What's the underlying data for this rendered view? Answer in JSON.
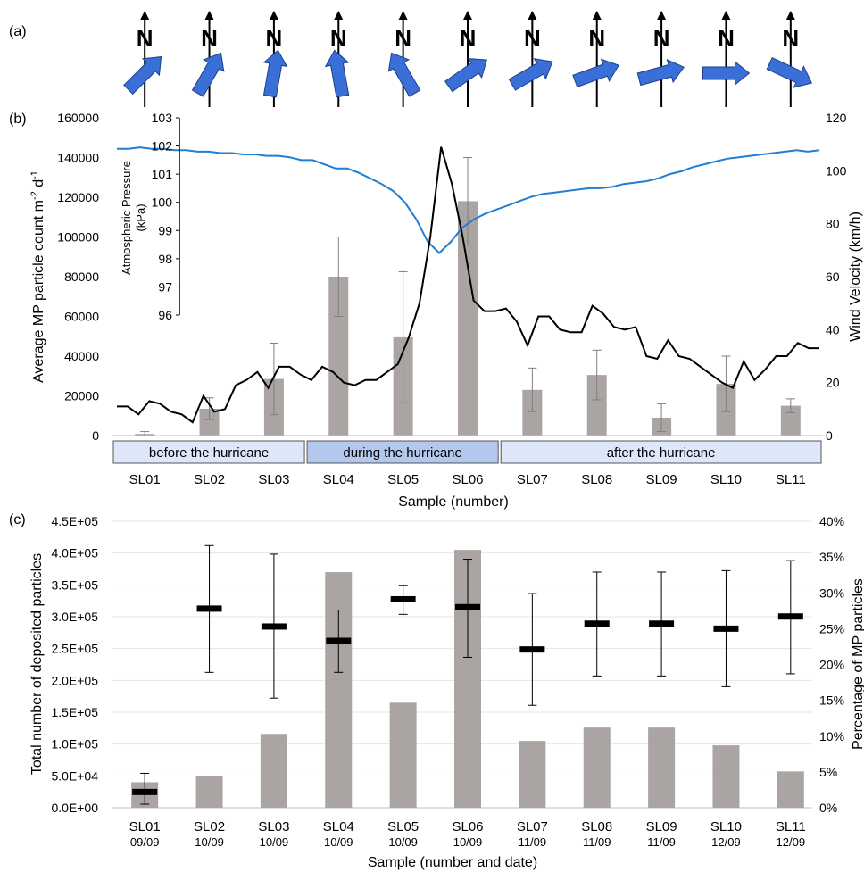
{
  "panel_labels": {
    "a": "(a)",
    "b": "(b)",
    "c": "(c)"
  },
  "colors": {
    "bar": "#aaa5a3",
    "pressure": "#1f7fd4",
    "wind": "#000000",
    "arrow": "#3a6fd8",
    "mean_mark": "#000000",
    "before_box": "#dde7f9",
    "during_box": "#b4c8ee",
    "after_box": "#dde7f9"
  },
  "compass": {
    "north_letter": "N",
    "wind_directions_deg": [
      225,
      210,
      190,
      170,
      150,
      235,
      240,
      250,
      255,
      270,
      295
    ]
  },
  "chart_data": [
    {
      "type": "bar",
      "panel": "(b)",
      "categories": [
        "SL01",
        "SL02",
        "SL03",
        "SL04",
        "SL05",
        "SL06",
        "SL07",
        "SL08",
        "SL09",
        "SL10",
        "SL11"
      ],
      "series": [
        {
          "values": [
            800,
            13500,
            28500,
            80000,
            49500,
            118000,
            23000,
            30500,
            9000,
            26000,
            15000
          ],
          "error": [
            1200,
            5500,
            18000,
            20000,
            33000,
            22000,
            11000,
            12500,
            7000,
            14000,
            3500
          ]
        }
      ],
      "xlabel": "Sample (number)",
      "ylabel": "Average MP particle count m",
      "ylabel_sup1": "-2",
      "ylabel_mid": " d",
      "ylabel_sup2": "-1",
      "ylim": [
        0,
        160000
      ],
      "yticks": [
        "0",
        "20000",
        "40000",
        "60000",
        "80000",
        "100000",
        "120000",
        "140000",
        "160000"
      ],
      "y2label": "Wind Velocity (km/h)",
      "y2lim": [
        0,
        120
      ],
      "y2ticks": [
        "0",
        "20",
        "40",
        "60",
        "80",
        "100",
        "120"
      ],
      "inset_axis": {
        "label_line1": "Atmospheric Pressure",
        "label_line2": "(kPa)",
        "ylim": [
          96,
          103
        ],
        "yticks": [
          "96",
          "97",
          "98",
          "99",
          "100",
          "101",
          "102",
          "103"
        ]
      },
      "pressure_kpa": [
        101.9,
        101.9,
        101.95,
        101.9,
        101.9,
        101.85,
        101.85,
        101.8,
        101.8,
        101.75,
        101.75,
        101.7,
        101.7,
        101.65,
        101.65,
        101.6,
        101.5,
        101.5,
        101.35,
        101.2,
        101.2,
        101.05,
        100.85,
        100.65,
        100.4,
        100.0,
        99.4,
        98.6,
        98.2,
        98.6,
        99.1,
        99.4,
        99.6,
        99.75,
        99.9,
        100.05,
        100.2,
        100.3,
        100.35,
        100.4,
        100.45,
        100.5,
        100.5,
        100.55,
        100.65,
        100.7,
        100.75,
        100.85,
        101.0,
        101.1,
        101.25,
        101.35,
        101.45,
        101.55,
        101.6,
        101.65,
        101.7,
        101.75,
        101.8,
        101.85,
        101.8,
        101.85
      ],
      "wind_kmh": [
        11,
        11,
        8,
        13,
        12,
        9,
        8,
        5,
        15,
        9,
        10,
        19,
        21,
        24,
        18,
        26,
        26,
        23,
        21,
        26,
        24,
        20,
        19,
        21,
        21,
        24,
        27,
        37,
        50,
        75,
        109,
        95,
        75,
        51,
        47,
        47,
        48,
        43,
        34,
        45,
        45,
        40,
        39,
        39,
        49,
        46,
        41,
        40,
        41,
        30,
        29,
        36,
        30,
        29,
        26,
        23,
        20,
        18,
        28,
        21,
        25,
        30,
        30,
        35,
        33,
        33
      ],
      "groups": [
        {
          "label": "before the hurricane",
          "from": 0,
          "to": 2
        },
        {
          "label": "during the hurricane",
          "from": 3,
          "to": 5
        },
        {
          "label": "after the hurricane",
          "from": 6,
          "to": 10
        }
      ]
    },
    {
      "type": "bar",
      "panel": "(c)",
      "categories": [
        "SL01",
        "SL02",
        "SL03",
        "SL04",
        "SL05",
        "SL06",
        "SL07",
        "SL08",
        "SL09",
        "SL10",
        "SL11"
      ],
      "dates": [
        "09/09",
        "10/09",
        "10/09",
        "10/09",
        "10/09",
        "10/09",
        "11/09",
        "11/09",
        "11/09",
        "12/09",
        "12/09"
      ],
      "total_deposited": [
        40000,
        50000,
        116000,
        370000,
        165000,
        405000,
        105000,
        126000,
        126000,
        98000,
        57000
      ],
      "mp_percentage": [
        2.2,
        27.8,
        25.3,
        23.3,
        29.1,
        28.0,
        22.1,
        25.7,
        25.7,
        25.0,
        26.7
      ],
      "mp_percentage_low": [
        0.5,
        18.9,
        15.3,
        18.9,
        27.0,
        21.0,
        14.3,
        18.4,
        18.4,
        16.9,
        18.7
      ],
      "mp_percentage_high": [
        4.8,
        36.6,
        35.4,
        27.6,
        31.0,
        34.7,
        29.9,
        32.9,
        32.9,
        33.1,
        34.5
      ],
      "xlabel": "Sample (number and date)",
      "ylabel": "Total number of deposited particles",
      "ylim": [
        0,
        450000
      ],
      "yticks": [
        "0.0E+00",
        "5.0E+04",
        "1.0E+05",
        "1.5E+05",
        "2.0E+05",
        "2.5E+05",
        "3.0E+05",
        "3.5E+05",
        "4.0E+05",
        "4.5E+05"
      ],
      "y2label": "Percentage of MP particles",
      "y2lim": [
        0,
        40
      ],
      "y2ticks": [
        "0%",
        "5%",
        "10%",
        "15%",
        "20%",
        "25%",
        "30%",
        "35%",
        "40%"
      ],
      "grid": true
    }
  ]
}
